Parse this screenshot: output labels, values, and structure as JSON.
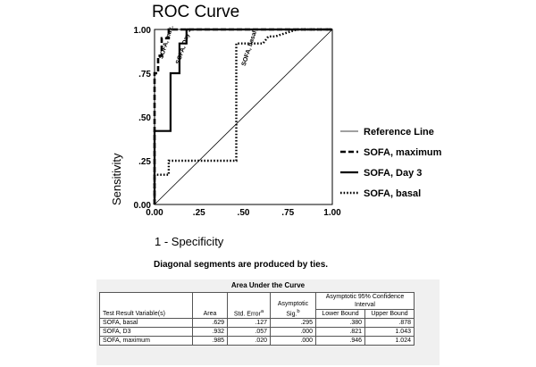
{
  "chart_data": {
    "type": "line",
    "title": "ROC Curve",
    "xlabel": "1 - Specificity",
    "ylabel": "Sensitivity",
    "xlim": [
      0,
      1
    ],
    "ylim": [
      0,
      1
    ],
    "xticks": [
      "0.00",
      ".25",
      ".50",
      ".75",
      "1.00"
    ],
    "yticks": [
      "0.00",
      ".25",
      ".50",
      ".75",
      "1.00"
    ],
    "legend_position": "right",
    "series": [
      {
        "name": "Reference Line",
        "style": "solid-thin",
        "x": [
          0,
          1
        ],
        "y": [
          0,
          1
        ]
      },
      {
        "name": "SOFA, maximum",
        "style": "dashed",
        "x": [
          0,
          0,
          0.02,
          0.02,
          0.04,
          0.04,
          0.08,
          0.08,
          1
        ],
        "y": [
          0,
          0.75,
          0.75,
          0.85,
          0.85,
          0.95,
          0.95,
          1,
          1
        ]
      },
      {
        "name": "SOFA, Day 3",
        "style": "solid-thick",
        "x": [
          0,
          0,
          0.09,
          0.09,
          0.14,
          0.14,
          0.18,
          0.18,
          1
        ],
        "y": [
          0,
          0.42,
          0.42,
          0.75,
          0.75,
          0.92,
          0.92,
          1,
          1
        ]
      },
      {
        "name": "SOFA, basal",
        "style": "dotted",
        "x": [
          0,
          0,
          0.08,
          0.08,
          0.46,
          0.46,
          0.61,
          0.64,
          0.68,
          0.8,
          1
        ],
        "y": [
          0,
          0.17,
          0.17,
          0.25,
          0.25,
          0.92,
          0.92,
          0.96,
          0.96,
          1,
          1
        ]
      }
    ],
    "annotations": [
      {
        "text": "SOFA, max.",
        "x": 0.045,
        "y": 0.83
      },
      {
        "text": "SOFA, Day 3",
        "x": 0.14,
        "y": 0.8
      },
      {
        "text": "SOFA, basal",
        "x": 0.51,
        "y": 0.79
      }
    ],
    "footnote": "Diagonal segments are produced by ties."
  },
  "auc_table": {
    "title": "Area Under the Curve",
    "ci_header": "Asymptotic 95% Confidence Interval",
    "columns": [
      "Test Result Variable(s)",
      "Area",
      "Std. Error",
      "Asymptotic Sig.",
      "Lower Bound",
      "Upper Bound"
    ],
    "col2_superscript": "a",
    "col3_superscript": "b",
    "rows": [
      [
        "SOFA, basal",
        ".629",
        ".127",
        ".295",
        ".380",
        ".878"
      ],
      [
        "SOFA, D3",
        ".932",
        ".057",
        ".000",
        ".821",
        "1.043"
      ],
      [
        "SOFA, maximum",
        ".985",
        ".020",
        ".000",
        ".946",
        "1.024"
      ]
    ]
  }
}
